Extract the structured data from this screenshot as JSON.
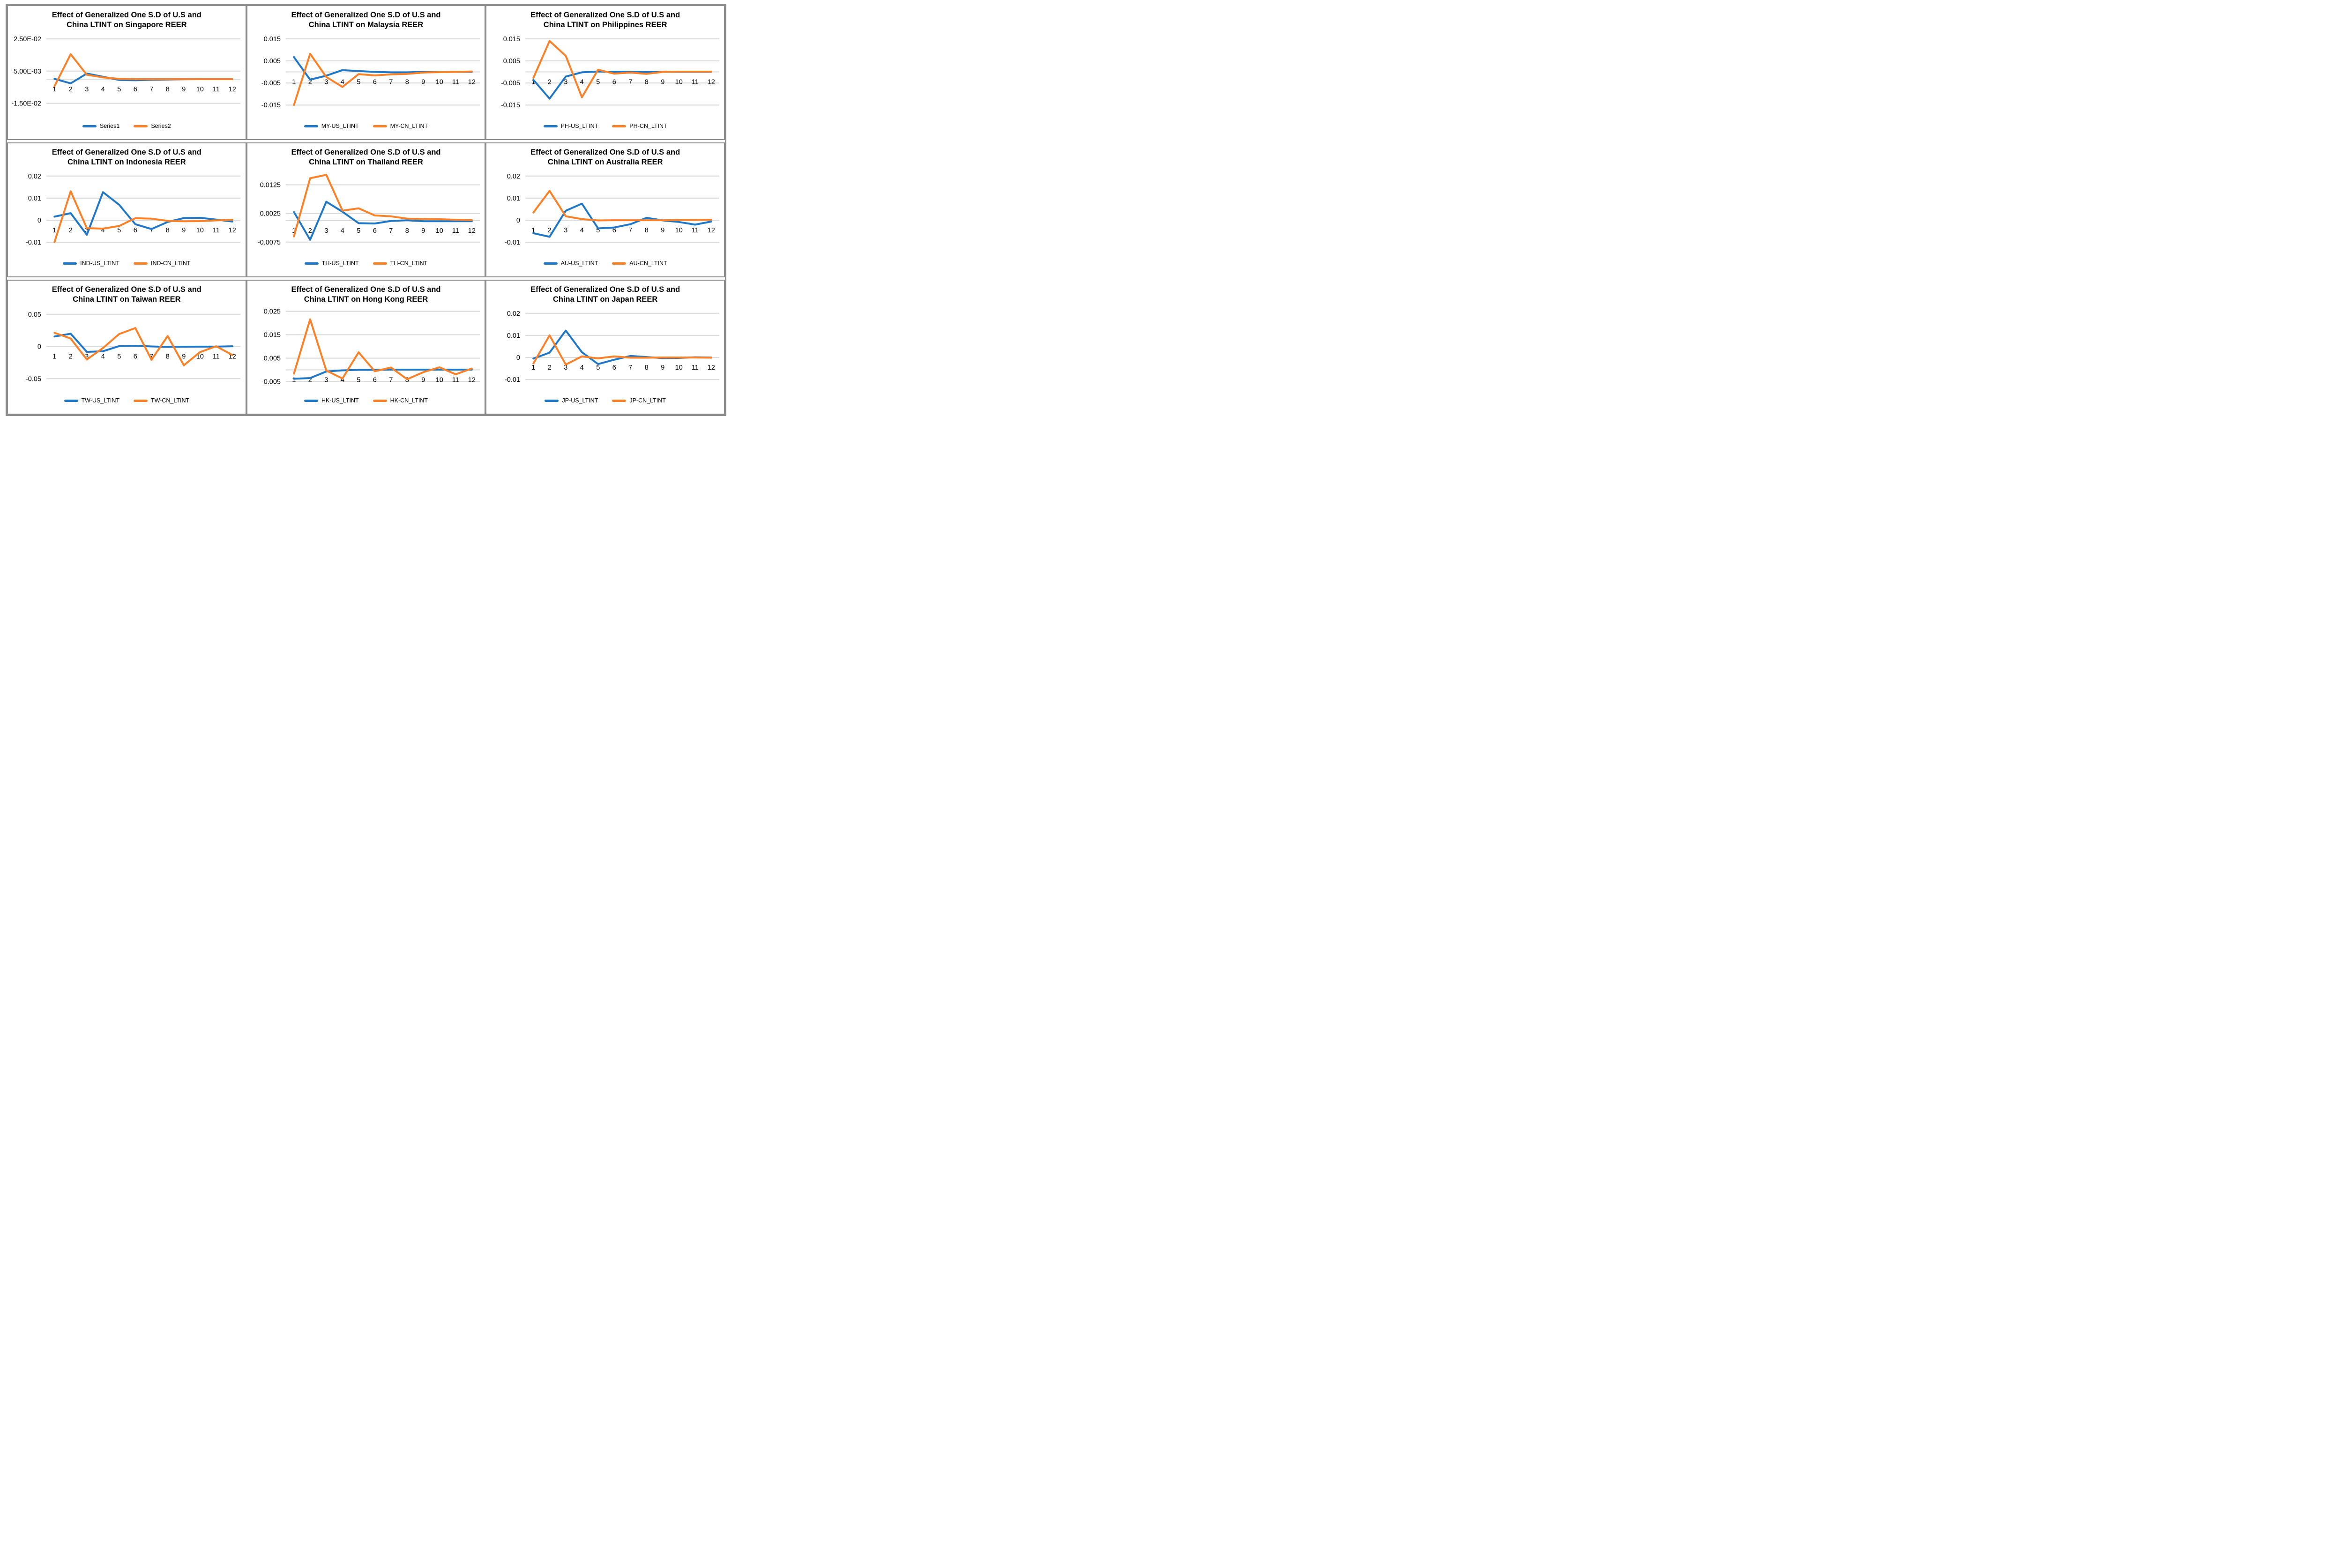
{
  "colors": {
    "us_line": "#1f77c5",
    "cn_line": "#fb8128",
    "gridline": "#d9d9d9",
    "panel_border": "#8c8c8c",
    "title_text": "#000000"
  },
  "x_labels": [
    "1",
    "2",
    "3",
    "4",
    "5",
    "6",
    "7",
    "8",
    "9",
    "10",
    "11",
    "12"
  ],
  "chart_data": [
    {
      "type": "line",
      "country": "singapore",
      "title": "Effect of Generalized One S.D of U.S and China LTINT on Singapore REER",
      "title_lines": [
        "Effect of Generalized One S.D of U.S and",
        "China LTINT on Singapore REER"
      ],
      "x": [
        1,
        2,
        3,
        4,
        5,
        6,
        7,
        8,
        9,
        10,
        11,
        12
      ],
      "ylim": [
        -0.0195,
        0.0285
      ],
      "grid": true,
      "legend_position": "bottom",
      "y_ticks": [
        {
          "label": "2.50E-02",
          "value": 0.025
        },
        {
          "label": "5.00E-03",
          "value": 0.005
        },
        {
          "label": "-1.50E-02",
          "value": -0.015
        }
      ],
      "series": [
        {
          "name": "Series1",
          "color": "us",
          "values": [
            0.0002,
            -0.0026,
            0.0035,
            0.0015,
            -0.0005,
            -0.0007,
            -0.0004,
            -0.0002,
            -0.0001,
            0.0,
            0.0,
            0.0
          ]
        },
        {
          "name": "Series2",
          "color": "cn",
          "values": [
            -0.0044,
            0.0155,
            0.0027,
            0.0011,
            0.0002,
            0.0,
            0.0,
            0.0,
            0.0,
            0.0,
            0.0,
            0.0
          ]
        }
      ]
    },
    {
      "type": "line",
      "country": "malaysia",
      "title": "Effect of Generalized One S.D of U.S and China LTINT on Malaysia REER",
      "title_lines": [
        "Effect of Generalized One S.D of U.S and",
        "China LTINT on Malaysia REER"
      ],
      "x": [
        1,
        2,
        3,
        4,
        5,
        6,
        7,
        8,
        9,
        10,
        11,
        12
      ],
      "ylim": [
        -0.0175,
        0.0175
      ],
      "grid": true,
      "legend_position": "bottom",
      "y_ticks": [
        {
          "label": "0.015",
          "value": 0.015
        },
        {
          "label": "0.005",
          "value": 0.005
        },
        {
          "label": "-0.005",
          "value": -0.005
        },
        {
          "label": "-0.015",
          "value": -0.015
        }
      ],
      "series": [
        {
          "name": "MY-US_LTINT",
          "color": "us",
          "values": [
            0.0067,
            -0.0035,
            -0.0017,
            0.0008,
            0.0004,
            0.0,
            -0.0002,
            -0.0002,
            0.0,
            0.0,
            0.0,
            0.0
          ]
        },
        {
          "name": "MY-CN_LTINT",
          "color": "cn",
          "values": [
            -0.015,
            0.0082,
            -0.0023,
            -0.0068,
            -0.001,
            -0.0016,
            -0.0011,
            -0.0009,
            -0.0003,
            -0.0001,
            0.0,
            0.0002
          ]
        }
      ]
    },
    {
      "type": "line",
      "country": "philippines",
      "title": "Effect of Generalized One S.D of U.S and China LTINT on Philippines REER",
      "title_lines": [
        "Effect of Generalized One S.D of U.S and",
        "China LTINT on Philippines REER"
      ],
      "x": [
        1,
        2,
        3,
        4,
        5,
        6,
        7,
        8,
        9,
        10,
        11,
        12
      ],
      "ylim": [
        -0.0175,
        0.0175
      ],
      "grid": true,
      "legend_position": "bottom",
      "y_ticks": [
        {
          "label": "0.015",
          "value": 0.015
        },
        {
          "label": "0.005",
          "value": 0.005
        },
        {
          "label": "-0.005",
          "value": -0.005
        },
        {
          "label": "-0.015",
          "value": -0.015
        }
      ],
      "series": [
        {
          "name": "PH-US_LTINT",
          "color": "us",
          "values": [
            -0.0036,
            -0.0121,
            -0.0021,
            -0.0002,
            0.0002,
            0.0,
            0.0001,
            -0.0001,
            0.0,
            0.0,
            0.0,
            0.0
          ]
        },
        {
          "name": "PH-CN_LTINT",
          "color": "cn",
          "values": [
            -0.0027,
            0.014,
            0.0073,
            -0.0115,
            0.001,
            -0.0008,
            -0.0003,
            -0.0009,
            0.0,
            0.0001,
            0.0001,
            0.0001
          ]
        }
      ]
    },
    {
      "type": "line",
      "country": "indonesia",
      "title": "Effect of Generalized One S.D of U.S and China LTINT on Indonesia REER",
      "title_lines": [
        "Effect of Generalized One S.D of U.S and",
        "China LTINT on Indonesia REER"
      ],
      "x": [
        1,
        2,
        3,
        4,
        5,
        6,
        7,
        8,
        9,
        10,
        11,
        12
      ],
      "ylim": [
        -0.0125,
        0.0225
      ],
      "grid": true,
      "legend_position": "bottom",
      "y_ticks": [
        {
          "label": "0.02",
          "value": 0.02
        },
        {
          "label": "0.01",
          "value": 0.01
        },
        {
          "label": "0",
          "value": 0.0
        },
        {
          "label": "-0.01",
          "value": -0.01
        }
      ],
      "series": [
        {
          "name": "IND-US_LTINT",
          "color": "us",
          "values": [
            0.0016,
            0.0032,
            -0.0066,
            0.0127,
            0.007,
            -0.0018,
            -0.004,
            -0.0008,
            0.001,
            0.0011,
            0.0003,
            -0.0006
          ]
        },
        {
          "name": "IND-CN_LTINT",
          "color": "cn",
          "values": [
            -0.0099,
            0.0131,
            -0.0036,
            -0.0038,
            -0.0026,
            0.0009,
            0.0007,
            -0.0003,
            -0.0005,
            -0.0004,
            -0.0001,
            0.0002
          ]
        }
      ]
    },
    {
      "type": "line",
      "country": "thailand",
      "title": "Effect of Generalized One S.D of U.S and China LTINT on Thailand REER",
      "title_lines": [
        "Effect of Generalized One S.D of U.S and",
        "China LTINT on Thailand REER"
      ],
      "x": [
        1,
        2,
        3,
        4,
        5,
        6,
        7,
        8,
        9,
        10,
        11,
        12
      ],
      "ylim": [
        -0.0095,
        0.0175
      ],
      "grid": true,
      "legend_position": "bottom",
      "y_ticks": [
        {
          "label": "0.0125",
          "value": 0.0125
        },
        {
          "label": "0.0025",
          "value": 0.0025
        },
        {
          "label": "-0.0075",
          "value": -0.0075
        }
      ],
      "series": [
        {
          "name": "TH-US_LTINT",
          "color": "us",
          "values": [
            0.003,
            -0.0067,
            0.0066,
            0.0031,
            -0.0009,
            -0.001,
            -0.0001,
            0.0001,
            -0.0002,
            -0.0002,
            -0.0002,
            -0.0002
          ]
        },
        {
          "name": "TH-CN_LTINT",
          "color": "cn",
          "values": [
            -0.0055,
            0.0148,
            0.016,
            0.0035,
            0.0043,
            0.0018,
            0.0015,
            0.0007,
            0.0006,
            0.0005,
            0.0003,
            0.0002
          ]
        }
      ]
    },
    {
      "type": "line",
      "country": "australia",
      "title": "Effect of Generalized One S.D of U.S and China LTINT on Australia REER",
      "title_lines": [
        "Effect of Generalized One S.D of U.S and",
        "China LTINT on Australia REER"
      ],
      "x": [
        1,
        2,
        3,
        4,
        5,
        6,
        7,
        8,
        9,
        10,
        11,
        12
      ],
      "ylim": [
        -0.0125,
        0.0225
      ],
      "grid": true,
      "legend_position": "bottom",
      "y_ticks": [
        {
          "label": "0.02",
          "value": 0.02
        },
        {
          "label": "0.01",
          "value": 0.01
        },
        {
          "label": "0",
          "value": 0.0
        },
        {
          "label": "-0.01",
          "value": -0.01
        }
      ],
      "series": [
        {
          "name": "AU-US_LTINT",
          "color": "us",
          "values": [
            -0.0059,
            -0.0075,
            0.0043,
            0.0075,
            -0.0037,
            -0.0033,
            -0.0018,
            0.0011,
            -0.0001,
            -0.0008,
            -0.002,
            -0.0006
          ]
        },
        {
          "name": "AU-CN_LTINT",
          "color": "cn",
          "values": [
            0.0035,
            0.0133,
            0.0018,
            0.0005,
            -0.0001,
            0.0,
            0.0,
            0.0,
            0.0,
            0.0001,
            0.0001,
            0.0002
          ]
        }
      ]
    },
    {
      "type": "line",
      "country": "taiwan",
      "title": "Effect of Generalized One S.D of U.S and China LTINT on Taiwan REER",
      "title_lines": [
        "Effect of Generalized One S.D of U.S and",
        "China LTINT on Taiwan REER"
      ],
      "x": [
        1,
        2,
        3,
        4,
        5,
        6,
        7,
        8,
        9,
        10,
        11,
        12
      ],
      "ylim": [
        -0.06,
        0.06
      ],
      "grid": true,
      "legend_position": "bottom",
      "y_ticks": [
        {
          "label": "0.05",
          "value": 0.05
        },
        {
          "label": "0",
          "value": 0.0
        },
        {
          "label": "-0.05",
          "value": -0.05
        }
      ],
      "series": [
        {
          "name": "TW-US_LTINT",
          "color": "us",
          "values": [
            0.0154,
            0.0198,
            -0.0084,
            -0.0074,
            0.0005,
            0.0011,
            0.0,
            -0.0007,
            -0.0004,
            -0.0003,
            -0.0003,
            0.0003
          ]
        },
        {
          "name": "TW-CN_LTINT",
          "color": "cn",
          "values": [
            0.0212,
            0.0123,
            -0.0203,
            -0.0025,
            0.0193,
            0.0286,
            -0.0207,
            0.0161,
            -0.0293,
            -0.0088,
            0.0003,
            -0.0133
          ]
        }
      ]
    },
    {
      "type": "line",
      "country": "hong-kong",
      "title": "Effect of Generalized One S.D of U.S and China LTINT on Hong Kong REER",
      "title_lines": [
        "Effect of Generalized One S.D of U.S and",
        "China LTINT on Hong Kong REER"
      ],
      "x": [
        1,
        2,
        3,
        4,
        5,
        6,
        7,
        8,
        9,
        10,
        11,
        12
      ],
      "ylim": [
        -0.0065,
        0.0265
      ],
      "grid": true,
      "legend_position": "bottom",
      "y_ticks": [
        {
          "label": "0.025",
          "value": 0.025
        },
        {
          "label": "0.015",
          "value": 0.015
        },
        {
          "label": "0.005",
          "value": 0.005
        },
        {
          "label": "-0.005",
          "value": -0.005
        }
      ],
      "series": [
        {
          "name": "HK-US_LTINT",
          "color": "us",
          "values": [
            -0.0038,
            -0.0035,
            -0.0007,
            -0.0002,
            0.0,
            0.0,
            0.0001,
            0.0001,
            0.0001,
            0.0001,
            0.0001,
            0.0001
          ]
        },
        {
          "name": "HK-CN_LTINT",
          "color": "cn",
          "values": [
            -0.0016,
            0.0216,
            -0.0003,
            -0.0037,
            0.0075,
            -0.0006,
            0.001,
            -0.004,
            -0.001,
            0.0011,
            -0.0019,
            0.0006
          ]
        }
      ]
    },
    {
      "type": "line",
      "country": "japan",
      "title": "Effect of Generalized One S.D of U.S and China LTINT on Japan REER",
      "title_lines": [
        "Effect of Generalized One S.D of U.S and",
        "China LTINT on Japan REER"
      ],
      "x": [
        1,
        2,
        3,
        4,
        5,
        6,
        7,
        8,
        9,
        10,
        11,
        12
      ],
      "ylim": [
        -0.0125,
        0.0225
      ],
      "grid": true,
      "legend_position": "bottom",
      "y_ticks": [
        {
          "label": "0.02",
          "value": 0.02
        },
        {
          "label": "0.01",
          "value": 0.01
        },
        {
          "label": "0",
          "value": 0.0
        },
        {
          "label": "-0.01",
          "value": -0.01
        }
      ],
      "series": [
        {
          "name": "JP-US_LTINT",
          "color": "us",
          "values": [
            -0.0005,
            0.0022,
            0.0122,
            0.0024,
            -0.003,
            -0.001,
            0.0007,
            0.0002,
            -0.0003,
            -0.0002,
            0.0001,
            0.0
          ]
        },
        {
          "name": "JP-CN_LTINT",
          "color": "cn",
          "values": [
            -0.0027,
            0.01,
            -0.0032,
            0.0005,
            -0.0004,
            0.0005,
            -0.0001,
            -0.0001,
            0.0,
            0.0,
            0.0,
            -0.0001
          ]
        }
      ]
    }
  ]
}
